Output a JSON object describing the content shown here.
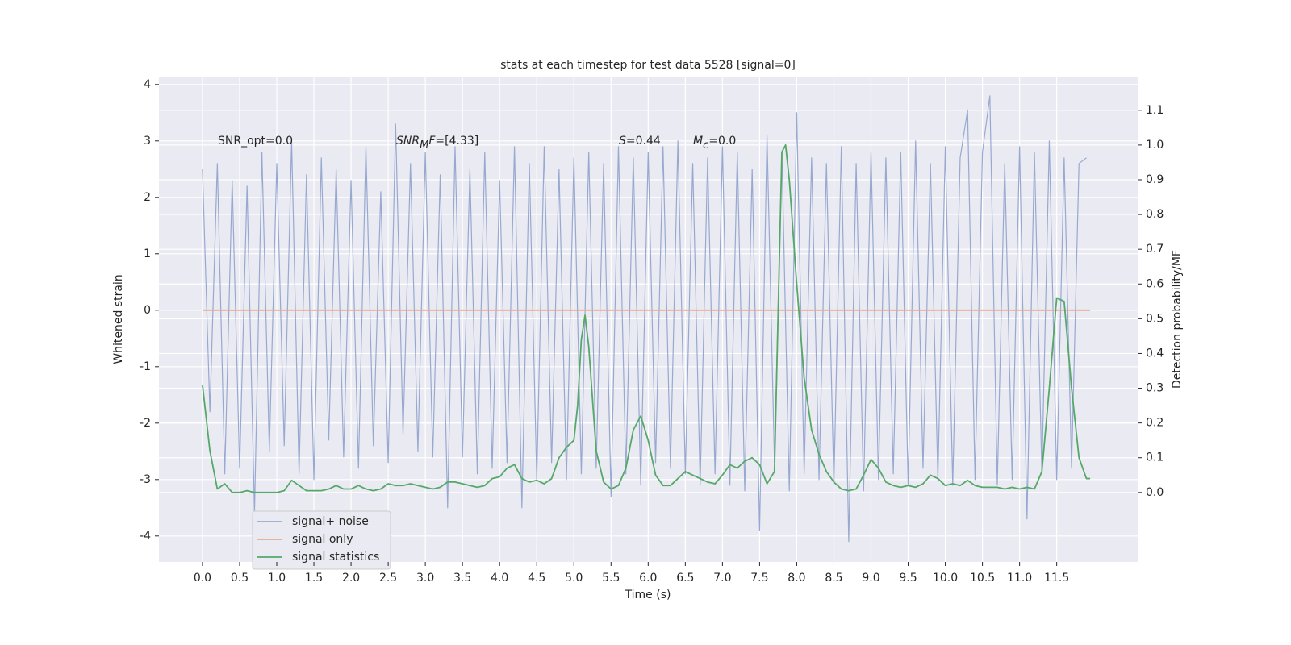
{
  "chart_data": {
    "type": "line",
    "title": "stats at each timestep for test data 5528 [signal=0]",
    "x_label": "Time (s)",
    "y_label": "Whitened strain",
    "y2_label": "Detection probability/MF",
    "grid": true,
    "legend_position": "lower left",
    "xlim": [
      -0.586,
      12.59
    ],
    "ylim": [
      -4.46,
      4.14
    ],
    "y2lim": [
      -0.2,
      1.197
    ],
    "xticks": [
      {
        "value": 0,
        "label": "0.0"
      },
      0.5,
      {
        "value": 1,
        "label": "1.0"
      },
      1.5,
      {
        "value": 2,
        "label": "2.0"
      },
      2.5,
      {
        "value": 3,
        "label": "3.0"
      },
      3.5,
      {
        "value": 4,
        "label": "4.0"
      },
      4.5,
      {
        "value": 5,
        "label": "5.0"
      },
      5.5,
      {
        "value": 6,
        "label": "6.0"
      },
      6.5,
      {
        "value": 7,
        "label": "7.0"
      },
      7.5,
      {
        "value": 8,
        "label": "8.0"
      },
      8.5,
      {
        "value": 9,
        "label": "9.0"
      },
      9.5,
      {
        "value": 10,
        "label": "10.0"
      },
      10.5,
      {
        "value": 11,
        "label": "11.0"
      },
      11.5
    ],
    "yticks": [
      -4,
      -3,
      -2,
      -1,
      0,
      1,
      2,
      3,
      4
    ],
    "y2ticks": [
      {
        "value": 0,
        "label": "0.0"
      },
      0.1,
      0.2,
      0.3,
      0.4,
      0.5,
      0.6,
      0.7,
      0.8,
      0.9,
      {
        "value": 1,
        "label": "1.0"
      },
      1.1
    ],
    "annotations": [
      [
        {
          "text": "SNR_opt=0.0"
        }
      ],
      [
        {
          "text": "SNR",
          "italic": true
        },
        {
          "text": "M",
          "italic": true,
          "sub": true
        },
        {
          "text": "F",
          "italic": true
        },
        {
          "text": "=[4.33]"
        }
      ],
      [
        {
          "text": "S",
          "italic": true
        },
        {
          "text": "=0.44"
        }
      ],
      [
        {
          "text": "M",
          "italic": true
        },
        {
          "text": "c",
          "italic": true,
          "sub": true
        },
        {
          "text": "=0.0"
        }
      ]
    ],
    "series": [
      {
        "name": "signal+ noise",
        "color": "#98a9d0",
        "axis": "y",
        "x": [
          0.0,
          0.1,
          0.2,
          0.3,
          0.4,
          0.5,
          0.6,
          0.7,
          0.8,
          0.9,
          1.0,
          1.1,
          1.2,
          1.3,
          1.4,
          1.5,
          1.6,
          1.7,
          1.8,
          1.9,
          2.0,
          2.1,
          2.2,
          2.3,
          2.4,
          2.5,
          2.6,
          2.7,
          2.8,
          2.9,
          3.0,
          3.1,
          3.2,
          3.3,
          3.4,
          3.5,
          3.6,
          3.7,
          3.8,
          3.9,
          4.0,
          4.1,
          4.2,
          4.3,
          4.4,
          4.5,
          4.6,
          4.7,
          4.8,
          4.9,
          5.0,
          5.1,
          5.2,
          5.3,
          5.4,
          5.5,
          5.6,
          5.7,
          5.8,
          5.9,
          6.0,
          6.1,
          6.2,
          6.3,
          6.4,
          6.5,
          6.6,
          6.7,
          6.8,
          6.9,
          7.0,
          7.1,
          7.2,
          7.3,
          7.4,
          7.5,
          7.6,
          7.7,
          7.8,
          7.9,
          8.0,
          8.1,
          8.2,
          8.3,
          8.4,
          8.5,
          8.6,
          8.7,
          8.8,
          8.9,
          9.0,
          9.1,
          9.2,
          9.3,
          9.4,
          9.5,
          9.6,
          9.7,
          9.8,
          9.9,
          10.0,
          10.1,
          10.2,
          10.3,
          10.4,
          10.5,
          10.6,
          10.7,
          10.8,
          10.9,
          11.0,
          11.1,
          11.2,
          11.3,
          11.4,
          11.5,
          11.6,
          11.7,
          11.8,
          11.9
        ],
        "values": [
          2.5,
          -1.8,
          2.6,
          -2.9,
          2.3,
          -2.8,
          2.2,
          -3.6,
          2.8,
          -2.5,
          2.6,
          -2.4,
          3.0,
          -2.9,
          2.4,
          -3.0,
          2.7,
          -2.3,
          2.5,
          -2.6,
          2.3,
          -2.8,
          2.9,
          -2.4,
          2.1,
          -2.7,
          3.3,
          -2.2,
          2.6,
          -2.5,
          2.8,
          -2.6,
          2.4,
          -3.5,
          2.9,
          -2.6,
          2.5,
          -2.9,
          2.8,
          -2.8,
          2.3,
          -2.7,
          2.9,
          -3.5,
          2.6,
          -3.0,
          2.9,
          -2.7,
          2.5,
          -3.0,
          2.7,
          -2.9,
          2.8,
          -2.8,
          2.6,
          -3.3,
          2.9,
          -2.9,
          2.7,
          -3.1,
          2.8,
          -2.7,
          2.9,
          -2.8,
          3.0,
          -2.9,
          2.6,
          -3.1,
          2.7,
          -2.9,
          2.9,
          -3.1,
          2.8,
          -3.2,
          2.5,
          -3.9,
          3.1,
          -2.7,
          2.8,
          -3.2,
          3.5,
          -2.9,
          2.7,
          -3.0,
          2.6,
          -3.1,
          2.9,
          -4.1,
          2.6,
          -3.2,
          2.8,
          -3.0,
          2.7,
          -2.9,
          2.8,
          -3.1,
          3.0,
          -2.8,
          2.6,
          -3.0,
          2.9,
          -3.1,
          2.7,
          3.55,
          -3.0,
          2.8,
          3.8,
          -3.1,
          2.6,
          -3.0,
          2.9,
          -3.7,
          2.8,
          -2.9,
          3.0,
          -3.0,
          2.7,
          -2.8,
          2.6,
          2.7
        ]
      },
      {
        "name": "signal only",
        "color": "#e9a98a",
        "axis": "y",
        "x": [
          0.0,
          11.95
        ],
        "values": [
          0,
          0
        ]
      },
      {
        "name": "signal statistics",
        "color": "#55a868",
        "axis": "y2",
        "x": [
          0.0,
          0.1,
          0.2,
          0.3,
          0.4,
          0.5,
          0.6,
          0.7,
          0.8,
          0.9,
          1.0,
          1.1,
          1.2,
          1.3,
          1.4,
          1.5,
          1.6,
          1.7,
          1.8,
          1.9,
          2.0,
          2.1,
          2.2,
          2.3,
          2.4,
          2.5,
          2.6,
          2.7,
          2.8,
          2.9,
          3.0,
          3.1,
          3.2,
          3.3,
          3.4,
          3.5,
          3.6,
          3.7,
          3.8,
          3.9,
          4.0,
          4.1,
          4.2,
          4.3,
          4.4,
          4.5,
          4.6,
          4.7,
          4.8,
          4.9,
          5.0,
          5.05,
          5.1,
          5.15,
          5.2,
          5.3,
          5.4,
          5.5,
          5.6,
          5.7,
          5.8,
          5.9,
          6.0,
          6.1,
          6.2,
          6.3,
          6.4,
          6.5,
          6.6,
          6.7,
          6.8,
          6.9,
          7.0,
          7.1,
          7.2,
          7.3,
          7.4,
          7.5,
          7.6,
          7.7,
          7.8,
          7.85,
          7.9,
          8.0,
          8.1,
          8.2,
          8.3,
          8.4,
          8.5,
          8.6,
          8.7,
          8.8,
          8.9,
          9.0,
          9.1,
          9.2,
          9.3,
          9.4,
          9.5,
          9.6,
          9.7,
          9.8,
          9.9,
          10.0,
          10.1,
          10.2,
          10.3,
          10.4,
          10.5,
          10.6,
          10.7,
          10.8,
          10.9,
          11.0,
          11.1,
          11.2,
          11.3,
          11.4,
          11.5,
          11.6,
          11.7,
          11.8,
          11.9,
          11.95
        ],
        "values": [
          0.31,
          0.12,
          0.01,
          0.025,
          0.0,
          0.0,
          0.005,
          0.0,
          0.0,
          0.0,
          0.0,
          0.005,
          0.035,
          0.02,
          0.005,
          0.005,
          0.005,
          0.01,
          0.02,
          0.01,
          0.01,
          0.02,
          0.01,
          0.005,
          0.01,
          0.025,
          0.02,
          0.02,
          0.025,
          0.02,
          0.015,
          0.01,
          0.015,
          0.03,
          0.03,
          0.025,
          0.02,
          0.015,
          0.02,
          0.04,
          0.045,
          0.07,
          0.08,
          0.04,
          0.03,
          0.035,
          0.025,
          0.04,
          0.1,
          0.13,
          0.15,
          0.25,
          0.44,
          0.51,
          0.42,
          0.12,
          0.03,
          0.01,
          0.02,
          0.07,
          0.18,
          0.22,
          0.15,
          0.05,
          0.02,
          0.02,
          0.04,
          0.06,
          0.05,
          0.04,
          0.03,
          0.025,
          0.05,
          0.08,
          0.07,
          0.09,
          0.1,
          0.08,
          0.025,
          0.06,
          0.98,
          1.0,
          0.9,
          0.6,
          0.33,
          0.18,
          0.11,
          0.06,
          0.03,
          0.01,
          0.005,
          0.01,
          0.05,
          0.095,
          0.07,
          0.03,
          0.02,
          0.015,
          0.02,
          0.015,
          0.025,
          0.05,
          0.04,
          0.02,
          0.025,
          0.02,
          0.035,
          0.02,
          0.015,
          0.015,
          0.015,
          0.01,
          0.015,
          0.01,
          0.015,
          0.01,
          0.06,
          0.3,
          0.56,
          0.55,
          0.3,
          0.1,
          0.04,
          0.04
        ]
      }
    ]
  }
}
